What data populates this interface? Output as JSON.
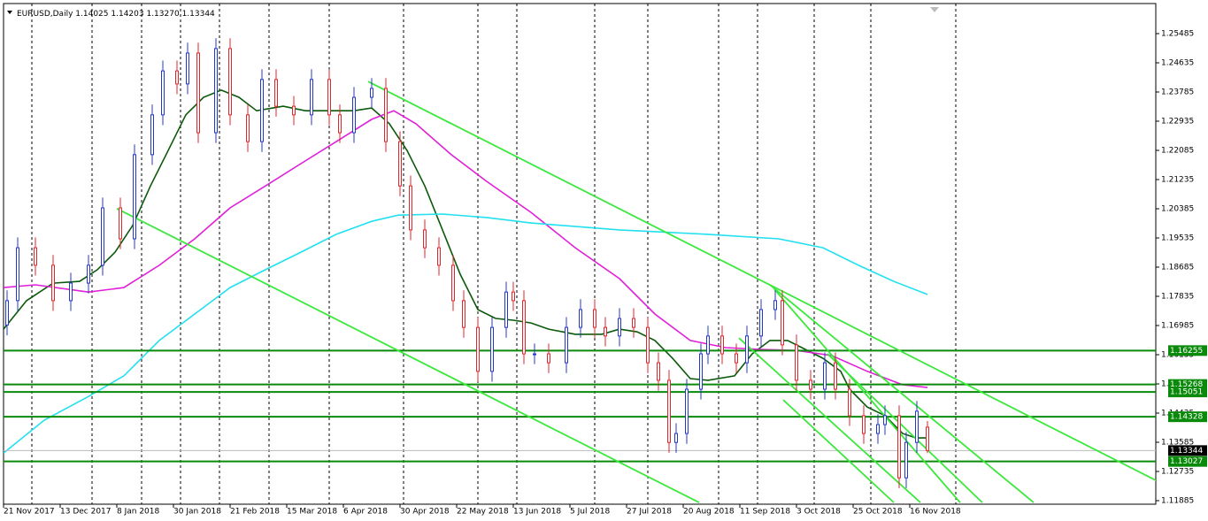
{
  "chart_data": {
    "type": "candlestick",
    "header": {
      "symbol": "EURUSD,Daily",
      "open": 1.14025,
      "high": 1.14203,
      "low": {
        "value": 1.1327,
        "label": "1.13270"
      },
      "close": 1.13344
    },
    "xlim": [
      0,
      325.5
    ],
    "xticks": [
      {
        "value": 0,
        "label": "21 Nov 2017"
      },
      {
        "value": 16,
        "label": "13 Dec 2017"
      },
      {
        "value": 32,
        "label": "8 Jan 2018"
      },
      {
        "value": 48,
        "label": "30 Jan 2018"
      },
      {
        "value": 64,
        "label": "21 Feb 2018"
      },
      {
        "value": 80,
        "label": "15 Mar 2018"
      },
      {
        "value": 96,
        "label": "6 Apr 2018"
      },
      {
        "value": 112,
        "label": "30 Apr 2018"
      },
      {
        "value": 128,
        "label": "22 May 2018"
      },
      {
        "value": 144,
        "label": "13 Jun 2018"
      },
      {
        "value": 160,
        "label": "5 Jul 2018"
      },
      {
        "value": 176,
        "label": "27 Jul 2018"
      },
      {
        "value": 192,
        "label": "20 Aug 2018"
      },
      {
        "value": 208,
        "label": "11 Sep 2018"
      },
      {
        "value": 224,
        "label": "3 Oct 2018"
      },
      {
        "value": 240,
        "label": "25 Oct 2018"
      },
      {
        "value": 256,
        "label": "16 Nov 2018"
      }
    ],
    "ylim": [
      1.11782,
      1.26361
    ],
    "yticks": [
      1.25485,
      1.24635,
      1.23785,
      1.22935,
      1.22085,
      1.21235,
      1.20385,
      1.19535,
      1.18685,
      1.17835,
      1.16985,
      1.16135,
      1.15285,
      1.14435,
      1.13585,
      1.12735,
      1.11885
    ],
    "up_color": "#2437c8",
    "down_color": "#e0262b",
    "candles": {
      "x": [
        1,
        4,
        9,
        14,
        19,
        24,
        28,
        33,
        37,
        42,
        45,
        49,
        52,
        55,
        60,
        64,
        69,
        73,
        77,
        82,
        87,
        92,
        95,
        99,
        104,
        108,
        112,
        115,
        119,
        123,
        127,
        130,
        134,
        138,
        142,
        144,
        147,
        150,
        154,
        159,
        163,
        167,
        170,
        174,
        178,
        182,
        185,
        188,
        190,
        193,
        197,
        199,
        203,
        207,
        210,
        214,
        218,
        220,
        224,
        228,
        232,
        235,
        239,
        243,
        247,
        249,
        253,
        255,
        258,
        261
      ],
      "open": [
        1.17,
        1.1771,
        1.1925,
        1.1874,
        1.1771,
        1.1822,
        1.1874,
        1.2041,
        1.1951,
        1.2196,
        1.2312,
        1.244,
        1.2402,
        1.2492,
        1.226,
        1.2505,
        1.2312,
        1.2234,
        1.2415,
        1.2337,
        1.2312,
        1.2415,
        1.2312,
        1.226,
        1.2363,
        1.2389,
        1.2234,
        1.2105,
        1.1977,
        1.1925,
        1.1874,
        1.1771,
        1.1693,
        1.1565,
        1.1693,
        1.1796,
        1.1771,
        1.1616,
        1.1616,
        1.159,
        1.1693,
        1.1745,
        1.1693,
        1.1668,
        1.1719,
        1.1693,
        1.159,
        1.1539,
        1.1358,
        1.1384,
        1.1513,
        1.1616,
        1.1668,
        1.1616,
        1.159,
        1.1668,
        1.1745,
        1.1771,
        1.1642,
        1.1539,
        1.1513,
        1.159,
        1.1513,
        1.1436,
        1.1384,
        1.141,
        1.1436,
        1.1255,
        1.1358,
        1.14025
      ],
      "high": [
        1.1801,
        1.1955,
        1.1955,
        1.1904,
        1.1852,
        1.1904,
        1.2071,
        1.2071,
        1.2226,
        1.2342,
        1.247,
        1.247,
        1.2522,
        1.2522,
        1.2535,
        1.2535,
        1.2342,
        1.2445,
        1.2445,
        1.2367,
        1.2445,
        1.2445,
        1.2342,
        1.2393,
        1.2419,
        1.2419,
        1.2264,
        1.2135,
        1.2007,
        1.1955,
        1.1904,
        1.1801,
        1.1723,
        1.1723,
        1.1826,
        1.1826,
        1.1801,
        1.1646,
        1.1646,
        1.1723,
        1.1775,
        1.1775,
        1.1723,
        1.1749,
        1.1749,
        1.1723,
        1.162,
        1.1569,
        1.1414,
        1.1543,
        1.1646,
        1.1698,
        1.1698,
        1.1646,
        1.1698,
        1.1775,
        1.1801,
        1.1801,
        1.1672,
        1.1569,
        1.162,
        1.162,
        1.1543,
        1.1466,
        1.144,
        1.1466,
        1.1466,
        1.1388,
        1.1479,
        1.14203
      ],
      "low": [
        1.167,
        1.1741,
        1.1844,
        1.1741,
        1.1741,
        1.1792,
        1.1844,
        1.1921,
        1.1921,
        1.2166,
        1.2282,
        1.2372,
        1.2372,
        1.223,
        1.223,
        1.2282,
        1.2204,
        1.2204,
        1.2307,
        1.2282,
        1.2282,
        1.2282,
        1.223,
        1.223,
        1.2333,
        1.2204,
        1.2075,
        1.1947,
        1.1895,
        1.1844,
        1.1741,
        1.1663,
        1.1535,
        1.1535,
        1.1663,
        1.1741,
        1.1586,
        1.1586,
        1.156,
        1.156,
        1.1663,
        1.1663,
        1.1638,
        1.1638,
        1.1663,
        1.156,
        1.1509,
        1.1328,
        1.1328,
        1.1354,
        1.1483,
        1.1586,
        1.1586,
        1.156,
        1.156,
        1.1638,
        1.1715,
        1.1612,
        1.1509,
        1.1483,
        1.1483,
        1.1483,
        1.1406,
        1.1354,
        1.1354,
        1.138,
        1.1225,
        1.1225,
        1.1328,
        1.1327
      ],
      "close": [
        1.1771,
        1.1925,
        1.1874,
        1.1771,
        1.1822,
        1.1874,
        1.2041,
        1.1951,
        1.2196,
        1.2312,
        1.244,
        1.2402,
        1.2492,
        1.226,
        1.2505,
        1.2312,
        1.2234,
        1.2415,
        1.2337,
        1.2312,
        1.2415,
        1.2312,
        1.226,
        1.2363,
        1.2389,
        1.2234,
        1.2105,
        1.1977,
        1.1925,
        1.1874,
        1.1771,
        1.1693,
        1.1565,
        1.1693,
        1.1796,
        1.1771,
        1.1616,
        1.1616,
        1.159,
        1.1693,
        1.1745,
        1.1693,
        1.1668,
        1.1719,
        1.1693,
        1.159,
        1.1539,
        1.1358,
        1.1384,
        1.1513,
        1.1616,
        1.1668,
        1.1616,
        1.159,
        1.1668,
        1.1745,
        1.1771,
        1.1642,
        1.1539,
        1.1513,
        1.159,
        1.1513,
        1.1436,
        1.1384,
        1.141,
        1.1436,
        1.1255,
        1.1358,
        1.1449,
        1.13344
      ]
    },
    "series": [
      {
        "color": "#0b5a0b",
        "x": [
          0,
          6.5,
          14,
          21.5,
          26.5,
          31.5,
          36.5,
          41.5,
          46.5,
          51.5,
          56.5,
          61.5,
          66.5,
          71.5,
          79,
          85.25,
          91.5,
          99,
          104,
          109,
          114,
          119,
          124,
          129,
          134,
          139,
          144,
          149,
          154,
          161.5,
          169,
          174,
          179,
          184,
          189,
          194,
          199,
          206.5,
          211.5,
          216.5,
          221.5,
          226.5,
          231.5,
          236.5,
          239,
          244,
          249,
          254,
          257.75,
          261
        ],
        "values": [
          1.1688,
          1.1771,
          1.1822,
          1.1827,
          1.1861,
          1.1912,
          1.199,
          1.2105,
          1.2208,
          1.2312,
          1.2363,
          1.2384,
          1.2363,
          1.2324,
          1.2337,
          1.2324,
          1.2324,
          1.2324,
          1.2332,
          1.2286,
          1.2208,
          1.2105,
          1.1977,
          1.1848,
          1.1745,
          1.1719,
          1.1714,
          1.1706,
          1.1688,
          1.1673,
          1.1673,
          1.1688,
          1.168,
          1.1655,
          1.1603,
          1.1544,
          1.1539,
          1.1552,
          1.1616,
          1.1655,
          1.1655,
          1.1629,
          1.1603,
          1.1565,
          1.1513,
          1.1461,
          1.1436,
          1.1384,
          1.1371,
          1.1371
        ]
      },
      {
        "color": "#e020d8",
        "x": [
          0,
          9,
          24,
          34,
          44,
          54,
          64,
          74,
          84,
          94,
          104,
          110.25,
          116.5,
          126.5,
          136.5,
          149,
          161.5,
          174,
          184,
          194,
          204,
          214,
          224,
          234,
          244,
          254,
          261
        ],
        "values": [
          1.1809,
          1.1817,
          1.1796,
          1.1809,
          1.1874,
          1.1951,
          1.2041,
          1.2105,
          1.217,
          1.2234,
          1.2299,
          1.2324,
          1.2286,
          1.2196,
          1.2118,
          1.2028,
          1.1925,
          1.1835,
          1.1732,
          1.1655,
          1.1634,
          1.1629,
          1.1626,
          1.1611,
          1.1565,
          1.1526,
          1.1518
        ]
      },
      {
        "color": "#22e0f0",
        "x": [
          0,
          11.5,
          24,
          34,
          44,
          54,
          64,
          74,
          84,
          94,
          104,
          111.5,
          124,
          136.5,
          149,
          174,
          199,
          219,
          231.5,
          241.5,
          251.5,
          261
        ],
        "values": [
          1.1327,
          1.1423,
          1.1492,
          1.1552,
          1.1655,
          1.1732,
          1.1809,
          1.1861,
          1.1912,
          1.1964,
          1.2002,
          1.202,
          1.2023,
          1.2013,
          1.1997,
          1.1977,
          1.1964,
          1.1951,
          1.1925,
          1.1874,
          1.1827,
          1.1789
        ]
      }
    ],
    "trendline_color": "#3be83b",
    "trendlines": [
      {
        "x": [
          103,
          328.5
        ],
        "values": [
          1.2409,
          1.1232
        ]
      },
      {
        "x": [
          32,
          196.5
        ],
        "values": [
          1.2039,
          1.1183
        ]
      },
      {
        "x": [
          216.5,
          291
        ],
        "values": [
          1.1817,
          1.1183
        ]
      },
      {
        "x": [
          217.75,
          270.25
        ],
        "values": [
          1.1804,
          1.1183
        ]
      },
      {
        "x": [
          207.75,
          259
        ],
        "values": [
          1.1662,
          1.1183
        ]
      },
      {
        "x": [
          220.25,
          251.5
        ],
        "values": [
          1.1482,
          1.1183
        ]
      },
      {
        "x": [
          232.75,
          276.5
        ],
        "values": [
          1.1616,
          1.1183
        ]
      }
    ],
    "level_color": "#0a8a0a",
    "levels": [
      1.16255,
      1.15268,
      1.15051,
      1.14328,
      1.13027
    ]
  }
}
